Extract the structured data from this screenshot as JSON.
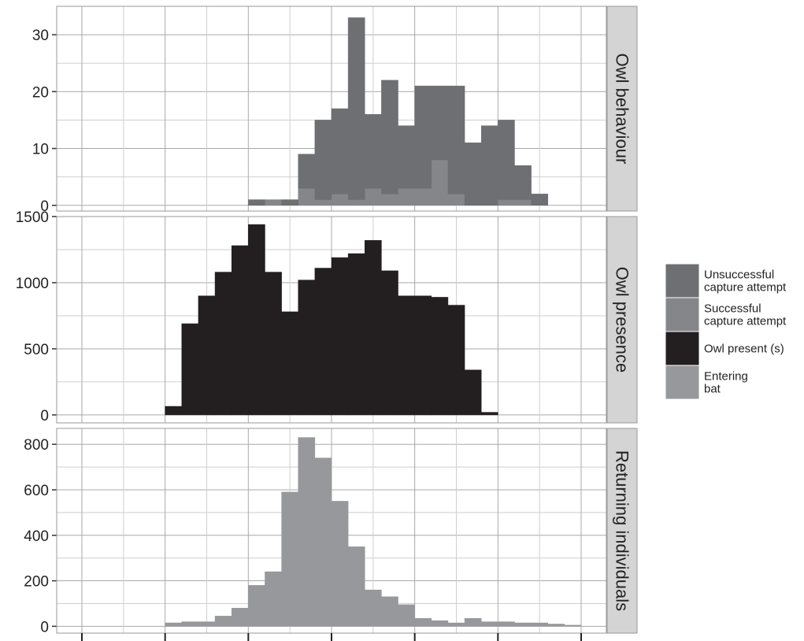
{
  "chart_data": {
    "type": "bar",
    "stacked": true,
    "bin_centers": [
      0.5,
      1.5,
      2.5,
      3.5,
      4.5,
      5.5,
      6.5,
      7.5,
      8.5,
      9.5,
      10.5,
      11.5,
      12.5,
      13.5,
      14.5,
      15.5,
      16.5,
      17.5,
      18.5,
      19.5,
      20.5,
      21.5,
      22.5,
      23.5,
      24.5,
      25.5,
      26.5,
      27.5,
      28.5,
      29.5
    ],
    "xlim": [
      0,
      30
    ],
    "x_ticks": [
      0,
      5,
      10,
      15,
      20,
      25,
      30
    ],
    "x_tick_labels": [
      "",
      "",
      "",
      "",
      "",
      "",
      ""
    ],
    "grid": true,
    "legend_position": "right",
    "legend": [
      {
        "label": "Unsuccessful\ncapture attempt",
        "color": "#6e6f72"
      },
      {
        "label": "Successful\ncapture attempt",
        "color": "#85868a"
      },
      {
        "label": "Owl present (s)",
        "color": "#231f20"
      },
      {
        "label": "Entering\nbat",
        "color": "#97989b"
      }
    ],
    "panels": [
      {
        "strip": "Owl behaviour",
        "ylim": [
          -1,
          35
        ],
        "yticks": [
          0,
          10,
          20,
          30
        ],
        "series": [
          {
            "name": "Successful capture attempt",
            "color": "#85868a",
            "values": [
              0,
              0,
              0,
              0,
              0,
              0,
              0,
              0,
              0,
              0,
              0,
              1,
              0,
              3,
              1,
              2,
              1,
              3,
              2,
              3,
              3,
              8,
              2,
              0,
              0,
              1,
              1,
              0,
              0,
              0
            ]
          },
          {
            "name": "Unsuccessful capture attempt",
            "color": "#6e6f72",
            "values": [
              0,
              0,
              0,
              0,
              0,
              0,
              0,
              0,
              0,
              0,
              1,
              0,
              1,
              6,
              14,
              15,
              32,
              13,
              20,
              11,
              18,
              13,
              19,
              11,
              14,
              14,
              6,
              2,
              0,
              0
            ]
          }
        ]
      },
      {
        "strip": "Owl presence",
        "ylim": [
          -60,
          1500
        ],
        "yticks": [
          0,
          500,
          1000,
          1500
        ],
        "series": [
          {
            "name": "Owl present (s)",
            "color": "#231f20",
            "values": [
              0,
              0,
              0,
              0,
              0,
              65,
              690,
              900,
              1080,
              1280,
              1440,
              1080,
              780,
              1020,
              1110,
              1190,
              1220,
              1320,
              1090,
              900,
              900,
              890,
              830,
              340,
              20,
              0,
              0,
              0,
              0,
              0
            ]
          }
        ]
      },
      {
        "strip": "Returning individuals",
        "ylim": [
          -30,
          870
        ],
        "yticks": [
          0,
          200,
          400,
          600,
          800
        ],
        "series": [
          {
            "name": "Entering bat",
            "color": "#97989b",
            "values": [
              0,
              0,
              0,
              0,
              0,
              15,
              20,
              20,
              45,
              80,
              180,
              240,
              590,
              830,
              740,
              550,
              350,
              160,
              130,
              95,
              35,
              25,
              15,
              35,
              20,
              20,
              15,
              15,
              10,
              5
            ]
          }
        ]
      }
    ]
  }
}
